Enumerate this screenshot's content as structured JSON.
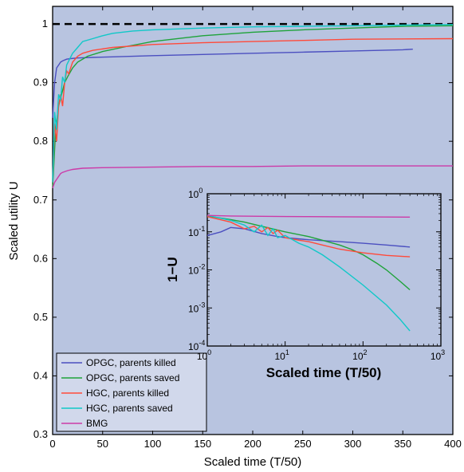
{
  "chart_data": [
    {
      "type": "line",
      "title": "",
      "xlabel": "Scaled time (T/50)",
      "ylabel": "Scaled utility U",
      "xlim": [
        0,
        400
      ],
      "ylim": [
        0.3,
        1.03
      ],
      "x_ticks": [
        0,
        50,
        100,
        150,
        200,
        250,
        300,
        350,
        400
      ],
      "y_ticks": [
        0.3,
        0.4,
        0.5,
        0.6,
        0.7,
        0.8,
        0.9,
        1
      ],
      "grid": false,
      "background": "#b8c4e0",
      "legend_position": "bottom-left",
      "reference_line": {
        "y": 1,
        "style": "dashed",
        "color": "#000000"
      },
      "series": [
        {
          "name": "OPGC, parents killed",
          "color": "#4b4fc0",
          "x": [
            0,
            2,
            4,
            6,
            8,
            10,
            14,
            18,
            25,
            40,
            60,
            100,
            150,
            200,
            250,
            300,
            350,
            360
          ],
          "y": [
            0.84,
            0.9,
            0.925,
            0.93,
            0.935,
            0.937,
            0.94,
            0.941,
            0.942,
            0.943,
            0.944,
            0.946,
            0.948,
            0.95,
            0.952,
            0.954,
            0.956,
            0.957
          ]
        },
        {
          "name": "OPGC, parents saved",
          "color": "#1fa33a",
          "x": [
            0,
            3,
            6,
            9,
            12,
            15,
            20,
            25,
            35,
            50,
            75,
            100,
            150,
            200,
            250,
            300,
            350,
            400
          ],
          "y": [
            0.72,
            0.82,
            0.86,
            0.88,
            0.9,
            0.91,
            0.925,
            0.935,
            0.945,
            0.953,
            0.962,
            0.97,
            0.98,
            0.986,
            0.99,
            0.993,
            0.996,
            0.997
          ]
        },
        {
          "name": "HGC, parents killed",
          "color": "#ff4a3a",
          "x": [
            0,
            2,
            4,
            6,
            8,
            10,
            12,
            14,
            16,
            20,
            25,
            30,
            40,
            60,
            100,
            150,
            200,
            250,
            300,
            400
          ],
          "y": [
            0.73,
            0.83,
            0.8,
            0.86,
            0.88,
            0.86,
            0.9,
            0.92,
            0.915,
            0.935,
            0.945,
            0.95,
            0.955,
            0.96,
            0.965,
            0.968,
            0.97,
            0.972,
            0.974,
            0.975
          ]
        },
        {
          "name": "HGC, parents saved",
          "color": "#10c8c8",
          "x": [
            0,
            2,
            4,
            6,
            8,
            10,
            12,
            14,
            17,
            20,
            25,
            30,
            40,
            50,
            60,
            80,
            100,
            150,
            200,
            250,
            300,
            350,
            400
          ],
          "y": [
            0.73,
            0.85,
            0.82,
            0.88,
            0.87,
            0.91,
            0.9,
            0.93,
            0.94,
            0.95,
            0.96,
            0.97,
            0.975,
            0.98,
            0.984,
            0.988,
            0.99,
            0.993,
            0.995,
            0.996,
            0.997,
            0.998,
            0.999
          ]
        },
        {
          "name": "BMG",
          "color": "#cc3aa8",
          "x": [
            0,
            2,
            4,
            6,
            8,
            10,
            15,
            20,
            30,
            50,
            100,
            150,
            200,
            250,
            300,
            350,
            400
          ],
          "y": [
            0.72,
            0.73,
            0.735,
            0.74,
            0.745,
            0.747,
            0.75,
            0.752,
            0.754,
            0.755,
            0.756,
            0.757,
            0.757,
            0.758,
            0.758,
            0.758,
            0.758
          ]
        }
      ]
    },
    {
      "type": "line",
      "title": "",
      "xlabel": "Scaled time (T/50)",
      "ylabel": "1−U",
      "x_scale": "log",
      "y_scale": "log",
      "xlim": [
        1,
        1000
      ],
      "ylim": [
        0.0001,
        1
      ],
      "x_tick_exponents": [
        "0",
        "1",
        "2",
        "3"
      ],
      "y_tick_exponents": [
        "0",
        "-1",
        "-2",
        "-3",
        "-4"
      ],
      "grid": false,
      "series": [
        {
          "name": "OPGC, parents killed",
          "color": "#4b4fc0",
          "x": [
            1,
            1.5,
            2,
            3,
            5,
            8,
            10,
            20,
            50,
            100,
            200,
            400
          ],
          "y": [
            0.08,
            0.1,
            0.13,
            0.12,
            0.09,
            0.075,
            0.07,
            0.062,
            0.055,
            0.05,
            0.045,
            0.04
          ]
        },
        {
          "name": "OPGC, parents saved",
          "color": "#1fa33a",
          "x": [
            1,
            2,
            3,
            5,
            10,
            20,
            30,
            50,
            70,
            100,
            150,
            200,
            300,
            400
          ],
          "y": [
            0.26,
            0.21,
            0.18,
            0.14,
            0.1,
            0.075,
            0.06,
            0.045,
            0.035,
            0.025,
            0.015,
            0.01,
            0.005,
            0.003
          ]
        },
        {
          "name": "HGC, parents killed",
          "color": "#ff4a3a",
          "x": [
            1,
            2,
            3,
            4,
            5,
            6,
            7,
            8,
            10,
            15,
            20,
            30,
            50,
            100,
            200,
            400
          ],
          "y": [
            0.25,
            0.18,
            0.12,
            0.14,
            0.1,
            0.13,
            0.09,
            0.11,
            0.07,
            0.06,
            0.055,
            0.045,
            0.035,
            0.028,
            0.024,
            0.022
          ]
        },
        {
          "name": "HGC, parents saved",
          "color": "#10c8c8",
          "x": [
            1,
            2,
            3,
            4,
            5,
            6,
            7,
            8,
            10,
            15,
            20,
            30,
            50,
            100,
            200,
            300,
            400
          ],
          "y": [
            0.27,
            0.2,
            0.15,
            0.1,
            0.15,
            0.08,
            0.12,
            0.07,
            0.08,
            0.05,
            0.04,
            0.025,
            0.012,
            0.004,
            0.0012,
            0.0005,
            0.00025
          ]
        },
        {
          "name": "BMG",
          "color": "#cc3aa8",
          "x": [
            1,
            2,
            5,
            10,
            20,
            50,
            100,
            200,
            400
          ],
          "y": [
            0.27,
            0.26,
            0.255,
            0.252,
            0.25,
            0.248,
            0.246,
            0.245,
            0.244
          ]
        }
      ]
    }
  ]
}
